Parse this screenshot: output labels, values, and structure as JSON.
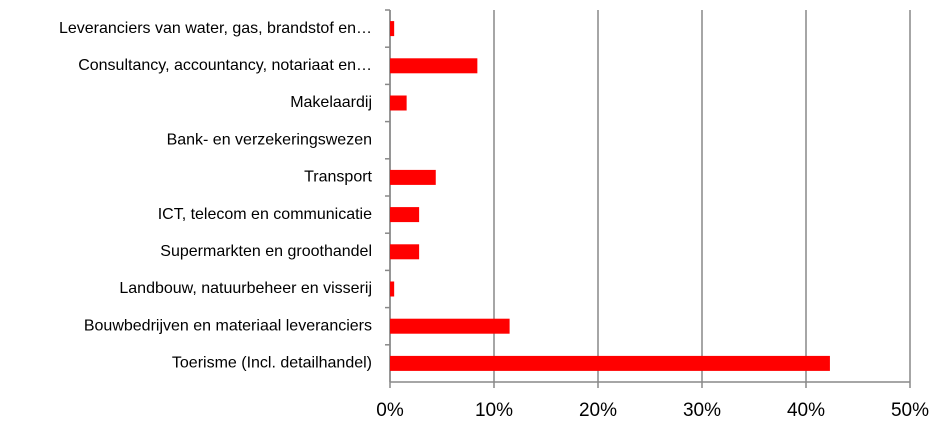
{
  "chart_data": {
    "type": "bar",
    "orientation": "horizontal",
    "categories": [
      "Leveranciers van water, gas, brandstof en…",
      "Consultancy, accountancy, notariaat en…",
      "Makelaardij",
      "Bank- en verzekeringswezen",
      "Transport",
      "ICT, telecom en communicatie",
      "Supermarkten en groothandel",
      "Landbouw, natuurbeheer en visserij",
      "Bouwbedrijven en materiaal leveranciers",
      "Toerisme (Incl. detailhandel)"
    ],
    "values": [
      0.4,
      8.4,
      1.6,
      0,
      4.4,
      2.8,
      2.8,
      0.4,
      11.5,
      42.3
    ],
    "color": "#ff0000",
    "xlim": [
      0,
      50
    ],
    "xticks": [
      {
        "value": 0,
        "label": "0%"
      },
      {
        "value": 10,
        "label": "10%"
      },
      {
        "value": 20,
        "label": "20%"
      },
      {
        "value": 30,
        "label": "30%"
      },
      {
        "value": 40,
        "label": "40%"
      },
      {
        "value": 50,
        "label": "50%"
      }
    ],
    "grid": true
  }
}
